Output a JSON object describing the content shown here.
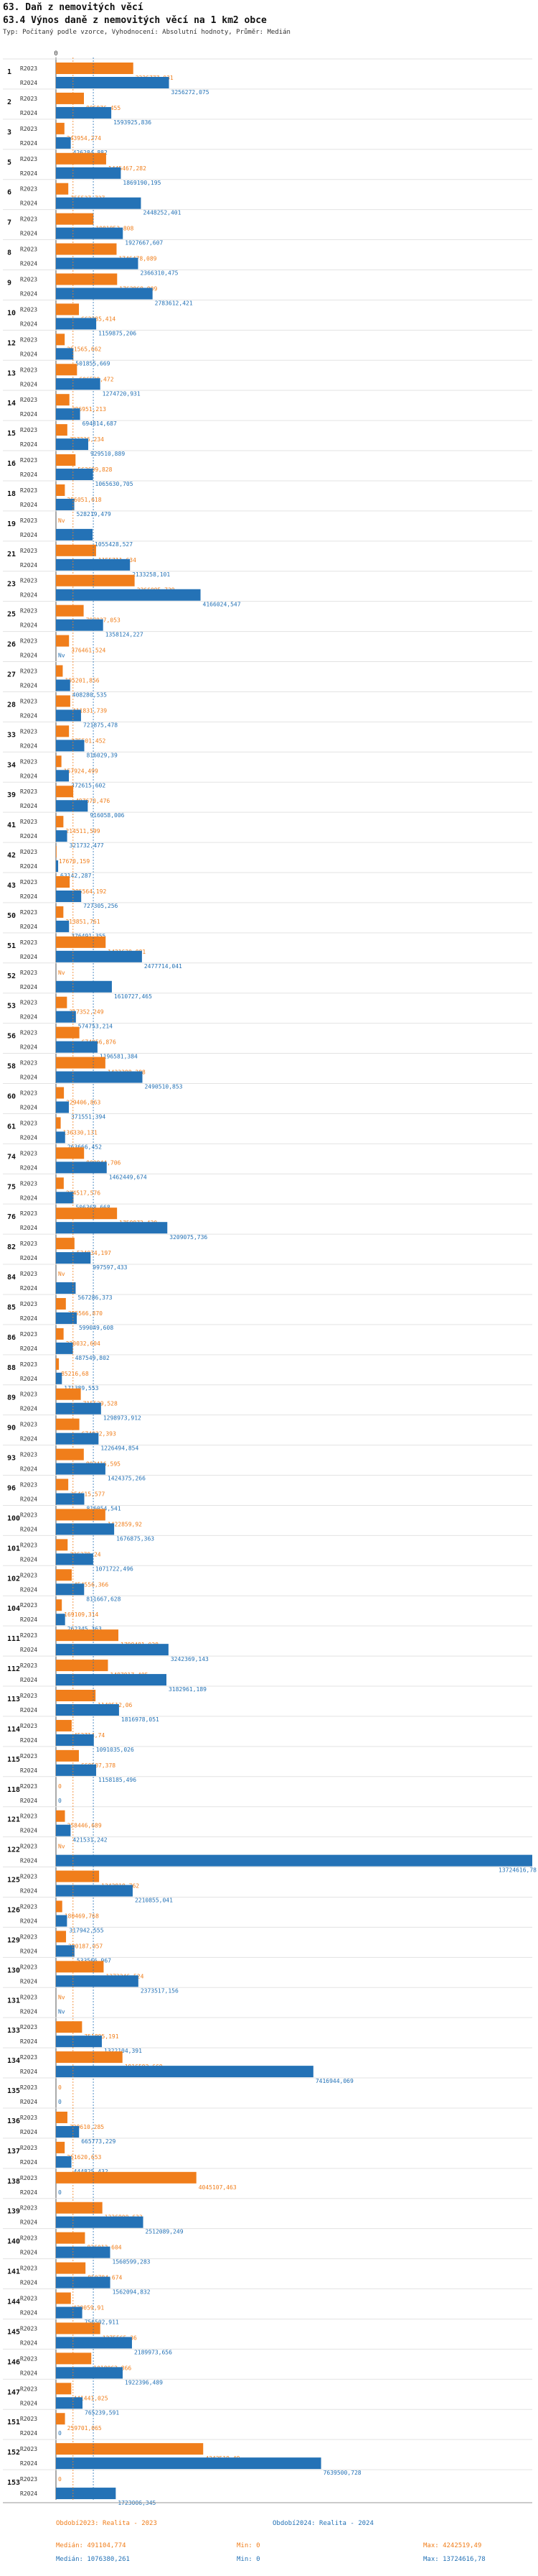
{
  "header": {
    "title": "63. Daň z nemovitých věcí",
    "subtitle": "63.4 Výnos daně z nemovitých věcí na 1 km2 obce",
    "settings": "Typ: Počítaný podle vzorce, Vyhodnocení: Absolutní hodnoty, Průměr: Medián"
  },
  "colors": {
    "series1": "#f07e1b",
    "series2": "#2472b6",
    "grid": "#e3e3e3"
  },
  "chart_data": {
    "type": "bar",
    "orientation": "horizontal",
    "xlim": [
      0,
      13724616.78
    ],
    "axis_zero_label": "0",
    "series": [
      {
        "name": "Období2023: Realita - 2023",
        "row_label": "R2023",
        "color": "#f07e1b"
      },
      {
        "name": "Období2024: Realita - 2024",
        "row_label": "R2024",
        "color": "#2472b6"
      }
    ],
    "categories": [
      {
        "id": "1",
        "v2023": "2226777,031",
        "v2024": "3256272,075"
      },
      {
        "id": "2",
        "v2023": "805976,455",
        "v2024": "1593925,836"
      },
      {
        "id": "3",
        "v2023": "243954,274",
        "v2024": "426284,882"
      },
      {
        "id": "5",
        "v2023": "1445467,282",
        "v2024": "1869190,195"
      },
      {
        "id": "6",
        "v2023": "355527,727",
        "v2024": "2448252,401"
      },
      {
        "id": "7",
        "v2023": "1081853,808",
        "v2024": "1927667,607"
      },
      {
        "id": "8",
        "v2023": "1746478,089",
        "v2024": "2366310,475"
      },
      {
        "id": "9",
        "v2023": "1762969,909",
        "v2024": "2783612,421"
      },
      {
        "id": "10",
        "v2023": "662285,414",
        "v2024": "1159875,206"
      },
      {
        "id": "12",
        "v2023": "251565,662",
        "v2024": "501855,669"
      },
      {
        "id": "13",
        "v2023": "606530,472",
        "v2024": "1274720,931"
      },
      {
        "id": "14",
        "v2023": "386951,213",
        "v2024": "694814,687"
      },
      {
        "id": "15",
        "v2023": "327336,234",
        "v2024": "929510,889"
      },
      {
        "id": "16",
        "v2023": "563699,828",
        "v2024": "1065630,705"
      },
      {
        "id": "18",
        "v2023": "256051,618",
        "v2024": "528219,479"
      },
      {
        "id": "19",
        "v2023": "Nv",
        "v2024": "1055428,527"
      },
      {
        "id": "21",
        "v2023": "1155711,634",
        "v2024": "2133258,101"
      },
      {
        "id": "23",
        "v2023": "2266095,739",
        "v2024": "4166024,547"
      },
      {
        "id": "25",
        "v2023": "797827,053",
        "v2024": "1358124,227"
      },
      {
        "id": "26",
        "v2023": "376461,524",
        "v2024": "Nv"
      },
      {
        "id": "27",
        "v2023": "195201,856",
        "v2024": "408280,535"
      },
      {
        "id": "28",
        "v2023": "411831,739",
        "v2024": "721875,478"
      },
      {
        "id": "33",
        "v2023": "375501,452",
        "v2024": "816029,39"
      },
      {
        "id": "34",
        "v2023": "157924,499",
        "v2024": "372615,602"
      },
      {
        "id": "39",
        "v2023": "497670,476",
        "v2024": "916058,006"
      },
      {
        "id": "41",
        "v2023": "214511,599",
        "v2024": "321732,477"
      },
      {
        "id": "42",
        "v2023": "17670,159",
        "v2024": "63142,287"
      },
      {
        "id": "43",
        "v2023": "395564,192",
        "v2024": "727305,256"
      },
      {
        "id": "50",
        "v2023": "213851,761",
        "v2024": "376491,355"
      },
      {
        "id": "51",
        "v2023": "1431630,081",
        "v2024": "2477714,041"
      },
      {
        "id": "52",
        "v2023": "Nv",
        "v2024": "1610727,465"
      },
      {
        "id": "53",
        "v2023": "317352,249",
        "v2024": "574753,214"
      },
      {
        "id": "56",
        "v2023": "674056,876",
        "v2024": "1196581,384"
      },
      {
        "id": "58",
        "v2023": "1423298,288",
        "v2024": "2490510,853"
      },
      {
        "id": "60",
        "v2023": "229406,863",
        "v2024": "371551,394"
      },
      {
        "id": "61",
        "v2023": "136330,131",
        "v2024": "263666,452"
      },
      {
        "id": "74",
        "v2023": "809944,706",
        "v2024": "1462449,674"
      },
      {
        "id": "75",
        "v2023": "224517,576",
        "v2024": "506368,668"
      },
      {
        "id": "76",
        "v2023": "1759972,430",
        "v2024": "3209075,736"
      },
      {
        "id": "82",
        "v2023": "534034,197",
        "v2024": "997597,433"
      },
      {
        "id": "84",
        "v2023": "Nv",
        "v2024": "567286,373"
      },
      {
        "id": "85",
        "v2023": "285566,870",
        "v2024": "599049,608"
      },
      {
        "id": "86",
        "v2023": "220032,604",
        "v2024": "487549,802"
      },
      {
        "id": "88",
        "v2023": "85216,68",
        "v2024": "171389,553"
      },
      {
        "id": "89",
        "v2023": "715529,528",
        "v2024": "1298973,912"
      },
      {
        "id": "90",
        "v2023": "674032,393",
        "v2024": "1226494,854"
      },
      {
        "id": "93",
        "v2023": "802416,595",
        "v2024": "1424375,266"
      },
      {
        "id": "96",
        "v2023": "354615,577",
        "v2024": "816054,541"
      },
      {
        "id": "100",
        "v2023": "1422859,92",
        "v2024": "1676875,363"
      },
      {
        "id": "101",
        "v2023": "336379,24",
        "v2024": "1071722,496"
      },
      {
        "id": "102",
        "v2023": "454556,366",
        "v2024": "811667,628"
      },
      {
        "id": "104",
        "v2023": "169109,314",
        "v2024": "262345,363"
      },
      {
        "id": "111",
        "v2023": "1798481,028",
        "v2024": "3242369,143"
      },
      {
        "id": "112",
        "v2023": "1497917,405",
        "v2024": "3182961,189"
      },
      {
        "id": "113",
        "v2023": "1140512,06",
        "v2024": "1816978,051"
      },
      {
        "id": "114",
        "v2023": "452714,74",
        "v2024": "1091035,026"
      },
      {
        "id": "115",
        "v2023": "660507,378",
        "v2024": "1158185,496"
      },
      {
        "id": "118",
        "v2023": "0",
        "v2024": "0"
      },
      {
        "id": "121",
        "v2023": "258446,689",
        "v2024": "421531,242"
      },
      {
        "id": "122",
        "v2023": "Nv",
        "v2024": "13724616,78"
      },
      {
        "id": "125",
        "v2023": "1242819,762",
        "v2024": "2210855,041"
      },
      {
        "id": "126",
        "v2023": "180469,768",
        "v2024": "317942,555"
      },
      {
        "id": "129",
        "v2023": "290187,057",
        "v2024": "533566,967"
      },
      {
        "id": "130",
        "v2023": "1373246,524",
        "v2024": "2373517,156"
      },
      {
        "id": "131",
        "v2023": "Nv",
        "v2024": "Nv"
      },
      {
        "id": "133",
        "v2023": "751895,191",
        "v2024": "1322104,391"
      },
      {
        "id": "134",
        "v2023": "1916592,669",
        "v2024": "7416944,069"
      },
      {
        "id": "135",
        "v2023": "0",
        "v2024": "0"
      },
      {
        "id": "136",
        "v2023": "329610,285",
        "v2024": "665773,229"
      },
      {
        "id": "137",
        "v2023": "251620,653",
        "v2024": "444825,432"
      },
      {
        "id": "138",
        "v2023": "4045107,463",
        "v2024": "0"
      },
      {
        "id": "139",
        "v2023": "1336900,633",
        "v2024": "2512089,249"
      },
      {
        "id": "140",
        "v2023": "836013,604",
        "v2024": "1560599,283"
      },
      {
        "id": "141",
        "v2023": "850784,674",
        "v2024": "1562094,832"
      },
      {
        "id": "144",
        "v2023": "430059,91",
        "v2024": "756502,911"
      },
      {
        "id": "145",
        "v2023": "1275565,36",
        "v2024": "2189973,656"
      },
      {
        "id": "146",
        "v2023": "1018062,866",
        "v2024": "1922396,489"
      },
      {
        "id": "147",
        "v2023": "441441,025",
        "v2024": "765239,591"
      },
      {
        "id": "151",
        "v2023": "259701,065",
        "v2024": "0"
      },
      {
        "id": "152",
        "v2023": "4242519,49",
        "v2024": "7639500,728"
      },
      {
        "id": "153",
        "v2023": "0",
        "v2024": "1723006,345"
      }
    ]
  },
  "footer": {
    "s1_name": "Období2023: Realita - 2023",
    "s2_name": "Období2024: Realita - 2024",
    "s1_median": "Medián: 491104,774",
    "s1_min": "Min: 0",
    "s1_max": "Max: 4242519,49",
    "s2_median": "Medián: 1076380,261",
    "s2_min": "Min: 0",
    "s2_max": "Max: 13724616,78"
  }
}
